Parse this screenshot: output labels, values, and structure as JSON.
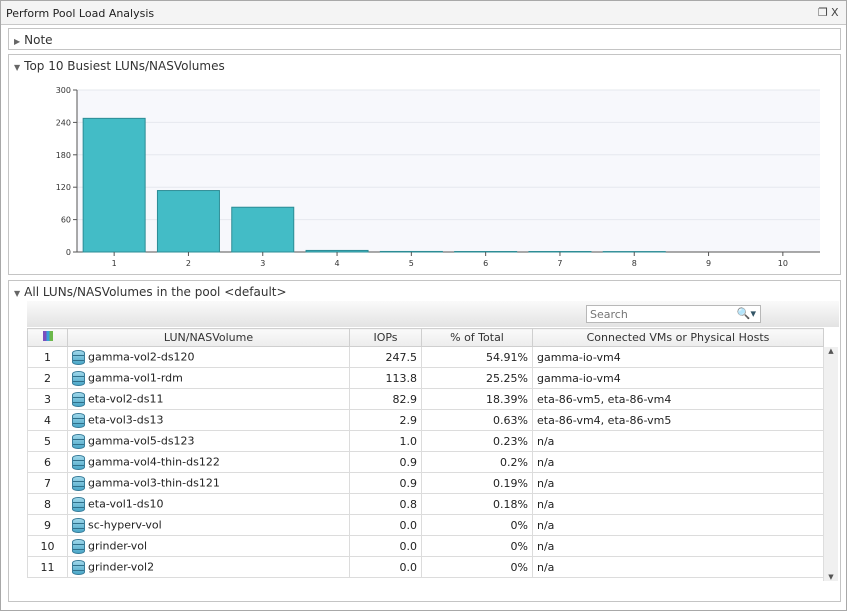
{
  "window": {
    "title": "Perform Pool Load Analysis",
    "restore_icon": "restore-icon",
    "close_label": "X"
  },
  "note": {
    "label": "Note",
    "expanded": false
  },
  "chart_panel": {
    "label": "Top 10 Busiest LUNs/NASVolumes"
  },
  "chart_data": {
    "type": "bar",
    "title": "",
    "xlabel": "",
    "ylabel": "",
    "categories": [
      "1",
      "2",
      "3",
      "4",
      "5",
      "6",
      "7",
      "8",
      "9",
      "10"
    ],
    "values": [
      247.5,
      113.8,
      82.9,
      2.9,
      1.0,
      0.9,
      0.9,
      0.8,
      0.0,
      0.0
    ],
    "ylim": [
      0,
      300
    ],
    "yticks": [
      0,
      60,
      120,
      180,
      240,
      300
    ],
    "bar_color": "#43bcc6",
    "grid": true
  },
  "table_panel": {
    "label": "All LUNs/NASVolumes in the pool <default>"
  },
  "search": {
    "placeholder": "Search"
  },
  "table": {
    "columns": [
      "",
      "LUN/NASVolume",
      "IOPs",
      "% of Total",
      "Connected VMs or Physical Hosts"
    ],
    "rows": [
      {
        "n": "1",
        "name": "gamma-vol2-ds120",
        "iops": "247.5",
        "pct": "54.91%",
        "hosts": "gamma-io-vm4"
      },
      {
        "n": "2",
        "name": "gamma-vol1-rdm",
        "iops": "113.8",
        "pct": "25.25%",
        "hosts": "gamma-io-vm4"
      },
      {
        "n": "3",
        "name": "eta-vol2-ds11",
        "iops": "82.9",
        "pct": "18.39%",
        "hosts": "eta-86-vm5, eta-86-vm4"
      },
      {
        "n": "4",
        "name": "eta-vol3-ds13",
        "iops": "2.9",
        "pct": "0.63%",
        "hosts": "eta-86-vm4, eta-86-vm5"
      },
      {
        "n": "5",
        "name": "gamma-vol5-ds123",
        "iops": "1.0",
        "pct": "0.23%",
        "hosts": "n/a"
      },
      {
        "n": "6",
        "name": "gamma-vol4-thin-ds122",
        "iops": "0.9",
        "pct": "0.2%",
        "hosts": "n/a"
      },
      {
        "n": "7",
        "name": "gamma-vol3-thin-ds121",
        "iops": "0.9",
        "pct": "0.19%",
        "hosts": "n/a"
      },
      {
        "n": "8",
        "name": "eta-vol1-ds10",
        "iops": "0.8",
        "pct": "0.18%",
        "hosts": "n/a"
      },
      {
        "n": "9",
        "name": "sc-hyperv-vol",
        "iops": "0.0",
        "pct": "0%",
        "hosts": "n/a"
      },
      {
        "n": "10",
        "name": "grinder-vol",
        "iops": "0.0",
        "pct": "0%",
        "hosts": "n/a"
      },
      {
        "n": "11",
        "name": "grinder-vol2",
        "iops": "0.0",
        "pct": "0%",
        "hosts": "n/a"
      }
    ]
  }
}
